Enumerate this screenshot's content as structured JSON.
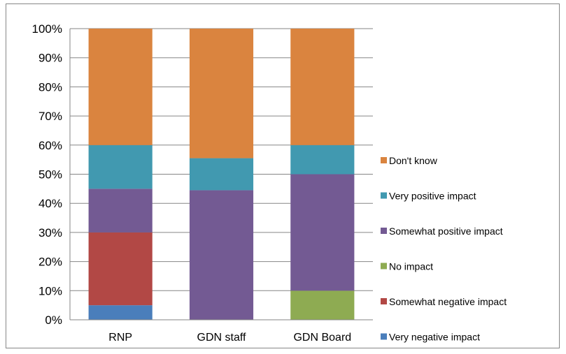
{
  "chart_data": {
    "type": "bar",
    "stacked": true,
    "percent": true,
    "categories": [
      "RNP",
      "GDN staff",
      "GDN Board"
    ],
    "series": [
      {
        "name": "Very negative impact",
        "color": "#4a7ebb",
        "values": [
          5,
          0,
          0
        ]
      },
      {
        "name": "Somewhat negative impact",
        "color": "#b24845",
        "values": [
          25,
          0,
          0
        ]
      },
      {
        "name": "No impact",
        "color": "#8eab52",
        "values": [
          0,
          0,
          10
        ]
      },
      {
        "name": "Somewhat positive impact",
        "color": "#735a93",
        "values": [
          15,
          44.5,
          40
        ]
      },
      {
        "name": "Very positive impact",
        "color": "#4199b0",
        "values": [
          15,
          11,
          10
        ]
      },
      {
        "name": "Don't know",
        "color": "#da843f",
        "values": [
          40,
          44.5,
          40
        ]
      }
    ],
    "ylim": [
      0,
      100
    ],
    "yticks": [
      "0%",
      "10%",
      "20%",
      "30%",
      "40%",
      "50%",
      "60%",
      "70%",
      "80%",
      "90%",
      "100%"
    ],
    "grid": true,
    "legend": "right",
    "title": "",
    "xlabel": "",
    "ylabel": ""
  }
}
